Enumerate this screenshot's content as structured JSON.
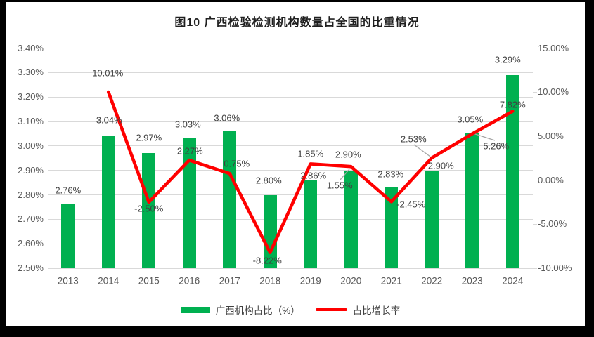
{
  "chart_data": {
    "type": "combo",
    "title": "图10 广西检验检测机构数量占全国的比重情况",
    "categories": [
      "2013",
      "2014",
      "2015",
      "2016",
      "2017",
      "2018",
      "2019",
      "2020",
      "2021",
      "2022",
      "2023",
      "2024"
    ],
    "series": [
      {
        "name": "广西机构占比（%）",
        "type": "bar",
        "axis": "left",
        "color": "#00B050",
        "values": [
          2.76,
          3.04,
          2.97,
          3.03,
          3.06,
          2.8,
          2.86,
          2.9,
          2.83,
          2.9,
          3.05,
          3.29
        ],
        "labels": [
          "2.76%",
          "3.04%",
          "2.97%",
          "3.03%",
          "3.06%",
          "2.80%",
          "2.86%",
          "2.90%",
          "2.83%",
          "2.90%",
          "3.05%",
          "3.29%"
        ]
      },
      {
        "name": "占比增长率",
        "type": "line",
        "axis": "right",
        "color": "#FF0000",
        "values": [
          null,
          10.01,
          -2.5,
          2.27,
          0.75,
          -8.22,
          1.85,
          1.55,
          -2.45,
          2.53,
          5.26,
          7.82
        ],
        "labels": [
          null,
          "10.01%",
          "-2.50%",
          "2.27%",
          "0.75%",
          "-8.22%",
          "1.85%",
          "1.55%",
          "-2.45%",
          "2.53%",
          "5.26%",
          "7.82%"
        ]
      }
    ],
    "left_axis": {
      "min": 2.5,
      "max": 3.4,
      "step": 0.1,
      "ticks": [
        "3.40%",
        "3.30%",
        "3.20%",
        "3.10%",
        "3.00%",
        "2.90%",
        "2.80%",
        "2.70%",
        "2.60%",
        "2.50%"
      ]
    },
    "right_axis": {
      "min": -10,
      "max": 15,
      "step": 5,
      "ticks": [
        "15.00%",
        "10.00%",
        "5.00%",
        "0.00%",
        "-5.00%",
        "-10.00%"
      ]
    },
    "grid": true,
    "legend_position": "bottom",
    "colors": {
      "bar": "#00B050",
      "line": "#FF0000",
      "gridline": "#D9D9D9",
      "axis_text": "#595959",
      "label_text": "#404040",
      "leader": "#A6A6A6",
      "background": "#FFFFFF",
      "frame": "#000000"
    }
  }
}
